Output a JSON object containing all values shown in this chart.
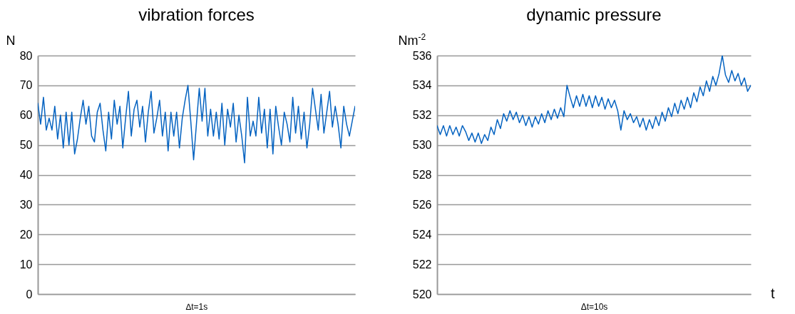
{
  "chart_data": [
    {
      "type": "line",
      "title": "vibration forces",
      "xlabel": "∆t=1s",
      "ylabel": "N",
      "ylim": [
        0,
        80
      ],
      "yticks": [
        0,
        10,
        20,
        30,
        40,
        50,
        60,
        70,
        80
      ],
      "grid": "y",
      "legend": false,
      "marker": "none",
      "categories": [
        null,
        null,
        null,
        null,
        null,
        null,
        null,
        null,
        null,
        null,
        null,
        null,
        null,
        null,
        null,
        null,
        null,
        null,
        null,
        null,
        null,
        null,
        null,
        null,
        null,
        null,
        null,
        null,
        null,
        null,
        null,
        null,
        null,
        null,
        null,
        null,
        null,
        null,
        null,
        null,
        null,
        null,
        null,
        null,
        null,
        null,
        null,
        null,
        null,
        null,
        null,
        null,
        null,
        null,
        null,
        null,
        null,
        null,
        null,
        null,
        null,
        null,
        null,
        null,
        null,
        null,
        null,
        null,
        null,
        null,
        null,
        null,
        null,
        null,
        null,
        null,
        null,
        null,
        null,
        null,
        null,
        null,
        null,
        null,
        null,
        null,
        null,
        null,
        null,
        null,
        null,
        null,
        null,
        null,
        null,
        null,
        null,
        null,
        null,
        null,
        null,
        null,
        null,
        null,
        null,
        null,
        null,
        null,
        null,
        null,
        null,
        null,
        null
      ],
      "series": [
        {
          "color": "#0563c1",
          "values": [
            64,
            57,
            66,
            55,
            59,
            55,
            63,
            52,
            60,
            49,
            61,
            50,
            61,
            47,
            52,
            59,
            65,
            57,
            63,
            53,
            51,
            61,
            64,
            55,
            48,
            61,
            52,
            65,
            57,
            63,
            49,
            59,
            68,
            53,
            62,
            65,
            56,
            63,
            51,
            61,
            68,
            54,
            59,
            65,
            53,
            61,
            48,
            61,
            53,
            61,
            49,
            59,
            65,
            70,
            58,
            45,
            57,
            69,
            58,
            69,
            53,
            62,
            53,
            61,
            52,
            64,
            50,
            62,
            56,
            64,
            51,
            60,
            53,
            44,
            66,
            53,
            58,
            53,
            66,
            54,
            62,
            49,
            62,
            47,
            63,
            56,
            50,
            61,
            57,
            51,
            66,
            54,
            63,
            52,
            61,
            49,
            57,
            69,
            62,
            55,
            67,
            54,
            61,
            68,
            56,
            63,
            57,
            49,
            63,
            57,
            53,
            58,
            63
          ]
        }
      ]
    },
    {
      "type": "line",
      "title": "dynamic pressure",
      "xlabel": "Δt=10s",
      "ylabel": "Nm$^{-2}$",
      "annotations": [
        "t"
      ],
      "ylim": [
        520,
        536
      ],
      "yticks": [
        520,
        522,
        524,
        526,
        528,
        530,
        532,
        534,
        536
      ],
      "grid": "y",
      "legend": false,
      "marker": "none",
      "categories": [
        null,
        null,
        null,
        null,
        null,
        null,
        null,
        null,
        null,
        null,
        null,
        null,
        null,
        null,
        null,
        null,
        null,
        null,
        null,
        null,
        null,
        null,
        null,
        null,
        null,
        null,
        null,
        null,
        null,
        null,
        null,
        null,
        null,
        null,
        null,
        null,
        null,
        null,
        null,
        null,
        null,
        null,
        null,
        null,
        null,
        null,
        null,
        null,
        null,
        null,
        null,
        null,
        null,
        null,
        null,
        null,
        null,
        null,
        null,
        null,
        null,
        null,
        null,
        null,
        null,
        null,
        null,
        null,
        null,
        null,
        null,
        null,
        null,
        null,
        null,
        null,
        null,
        null,
        null,
        null,
        null,
        null,
        null,
        null,
        null,
        null,
        null,
        null,
        null,
        null,
        null,
        null,
        null,
        null,
        null,
        null,
        null,
        null,
        null,
        null
      ],
      "series": [
        {
          "color": "#0563c1",
          "values": [
            531.3,
            530.7,
            531.3,
            530.6,
            531.3,
            530.7,
            531.2,
            530.6,
            531.3,
            530.9,
            530.3,
            530.8,
            530.2,
            530.8,
            530.1,
            530.7,
            530.3,
            531.2,
            530.7,
            531.7,
            531.1,
            532.1,
            531.6,
            532.3,
            531.7,
            532.2,
            531.5,
            532.0,
            531.3,
            531.9,
            531.2,
            531.9,
            531.4,
            532.1,
            531.5,
            532.3,
            531.7,
            532.4,
            531.8,
            532.5,
            531.9,
            534.0,
            533.2,
            532.5,
            533.3,
            532.6,
            533.4,
            532.6,
            533.3,
            532.5,
            533.3,
            532.6,
            533.2,
            532.4,
            533.1,
            532.5,
            533.0,
            532.3,
            531.0,
            532.3,
            531.7,
            532.1,
            531.5,
            531.9,
            531.2,
            531.8,
            531.0,
            531.7,
            531.1,
            531.9,
            531.3,
            532.2,
            531.6,
            532.5,
            531.9,
            532.8,
            532.1,
            533.0,
            532.4,
            533.2,
            532.5,
            533.5,
            532.9,
            533.9,
            533.3,
            534.3,
            533.6,
            534.6,
            534.0,
            534.8,
            536.0,
            534.7,
            534.2,
            535.0,
            534.3,
            534.8,
            534.0,
            534.5,
            533.6,
            534.0
          ]
        }
      ]
    }
  ]
}
